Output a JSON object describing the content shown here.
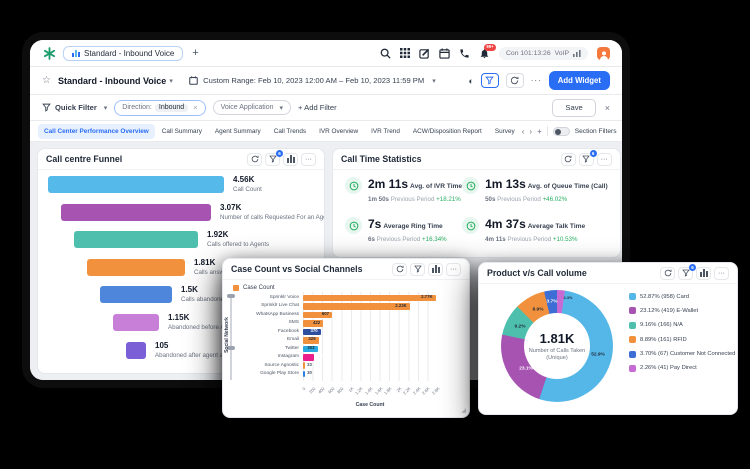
{
  "colors": {
    "accent": "#2a6df5",
    "positive": "#27ae60",
    "background": "#000000"
  },
  "topbar": {
    "tab_title": "Standard - Inbound Voice",
    "new_tab": "+",
    "bell_badge": "99+",
    "connection_label": "Con 101:13:26",
    "voip_label": "VoIP"
  },
  "toolbar": {
    "board_title": "Standard - Inbound Voice",
    "date_range": "Custom Range: Feb 10, 2023 12:00 AM – Feb 10, 2023 11:59 PM",
    "add_widget": "Add Widget",
    "more": "···"
  },
  "filterbar": {
    "quick_filter": "Quick Filter",
    "chip1_label": "Direction:",
    "chip1_value": "Inbound",
    "chip1_close": "×",
    "chip2_label": "Voice Application",
    "add_filter": "+ Add Filter",
    "save": "Save",
    "close": "×"
  },
  "tabs": {
    "items": [
      "Call Center Performance Overview",
      "Call Summary",
      "Agent Summary",
      "Call Trends",
      "IVR Overview",
      "IVR Trend",
      "ACW/Disposition Report",
      "Survey"
    ],
    "prev_arrow": "‹",
    "next_arrow": "›",
    "add": "+",
    "section_filters": "Section Filters"
  },
  "funnel": {
    "title": "Call centre Funnel",
    "filter_badge": "6",
    "type": "funnel",
    "bars": [
      {
        "value": "4.56K",
        "label": "Call Count",
        "color": "#55b9e9"
      },
      {
        "value": "3.07K",
        "label": "Number of calls Requested For an Agent",
        "color": "#a653b2"
      },
      {
        "value": "1.92K",
        "label": "Calls offered to Agents",
        "color": "#4fbfad"
      },
      {
        "value": "1.81K",
        "label": "Calls answered by Agents",
        "color": "#f2913d"
      },
      {
        "value": "1.5K",
        "label": "Calls abandoned within",
        "color": "#4e86db"
      },
      {
        "value": "1.15K",
        "label": "Abandoned before Agent assi",
        "color": "#c77fd8"
      },
      {
        "value": "105",
        "label": "Abandoned after agent assignm",
        "color": "#7a5fd6"
      }
    ]
  },
  "stats": {
    "title": "Call Time Statistics",
    "filter_badge": "6",
    "previous_period": "Previous Period",
    "items": [
      {
        "value": "2m 11s",
        "label": "Avg. of IVR Time",
        "prev": "1m 50s",
        "delta": "+18.21%"
      },
      {
        "value": "1m 13s",
        "label": "Avg. of Queue Time (Call)",
        "prev": "50s",
        "delta": "+46.02%"
      },
      {
        "value": "7s",
        "label": "Average Ring Time",
        "prev": "6s",
        "delta": "+16.34%"
      },
      {
        "value": "4m 37s",
        "label": "Average Talk Time",
        "prev": "4m 11s",
        "delta": "+10.53%"
      }
    ]
  },
  "case_chart": {
    "title": "Case Count vs Social Channels",
    "type": "bar",
    "legend": "Case Count",
    "ylabel": "Social Network",
    "xlabel": "Case Count",
    "xmax": 2800,
    "xticks": [
      "0",
      "200",
      "400",
      "600",
      "800",
      "1K",
      "1.2K",
      "1.4K",
      "1.6K",
      "1.8K",
      "2K",
      "2.2K",
      "2.4K",
      "2.6K",
      "2.8K"
    ],
    "rows": [
      {
        "label": "Sprinklr Voice",
        "value": 2770,
        "display": "2.77K",
        "color": "#f2913d",
        "value_color": "#1f2937"
      },
      {
        "label": "Sprinklr Live Chat",
        "value": 2230,
        "display": "2.23K",
        "color": "#f2913d",
        "value_color": "#1f2937"
      },
      {
        "label": "WhatsApp Business",
        "value": 607,
        "display": "607",
        "color": "#f2913d",
        "value_color": "#1f2937"
      },
      {
        "label": "SMS",
        "value": 422,
        "display": "422",
        "color": "#f2913d",
        "value_color": "#1f2937"
      },
      {
        "label": "Facebook",
        "value": 370,
        "display": "370",
        "color": "#2c4e9e",
        "value_color": "#ffffff"
      },
      {
        "label": "Email",
        "value": 326,
        "display": "326",
        "color": "#f2913d",
        "value_color": "#1f2937"
      },
      {
        "label": "Twitter",
        "value": 303,
        "display": "303",
        "color": "#29a9e1",
        "value_color": "#1f2937"
      },
      {
        "label": "Instagram",
        "value": 222,
        "display": "222",
        "color": "#ea1e8c",
        "value_color": "#ffffff"
      },
      {
        "label": "Source Agnostic",
        "value": 33,
        "display": "33",
        "color": "#f2913d",
        "value_color": "#4b5563"
      },
      {
        "label": "Google Play Store",
        "value": 30,
        "display": "30",
        "color": "#2d7fe0",
        "value_color": "#4b5563"
      }
    ]
  },
  "product_chart": {
    "title": "Product v/s Call volume",
    "filter_badge": "6",
    "type": "donut",
    "center_value": "1.81K",
    "center_label1": "Number of Calls Taken",
    "center_label2": "(Unique)",
    "slices": [
      {
        "name": "Card",
        "pct": 52.87,
        "count": 958,
        "chart_label": "52.9%",
        "legend": "52.87% (958) Card",
        "color": "#54b7e8"
      },
      {
        "name": "E-Wallet",
        "pct": 23.12,
        "count": 419,
        "chart_label": "23.1%",
        "legend": "23.12% (419) E-Wallet",
        "color": "#a653b2"
      },
      {
        "name": "N/A",
        "pct": 9.16,
        "count": 166,
        "chart_label": "9.2%",
        "legend": "9.16% (166) N/A",
        "color": "#4fbfad"
      },
      {
        "name": "RFID",
        "pct": 8.89,
        "count": 161,
        "chart_label": "8.9%",
        "legend": "8.89% (161) RFID",
        "color": "#f2913d"
      },
      {
        "name": "Customer Not Connected",
        "pct": 3.7,
        "count": 67,
        "chart_label": "3.7%",
        "legend": "3.70% (67) Customer Not Connected",
        "color": "#3c6ed5"
      },
      {
        "name": "Pay Direct",
        "pct": 2.26,
        "count": 41,
        "chart_label": "2.3%",
        "legend": "2.26% (41) Pay Direct",
        "color": "#c76bd4"
      }
    ]
  }
}
